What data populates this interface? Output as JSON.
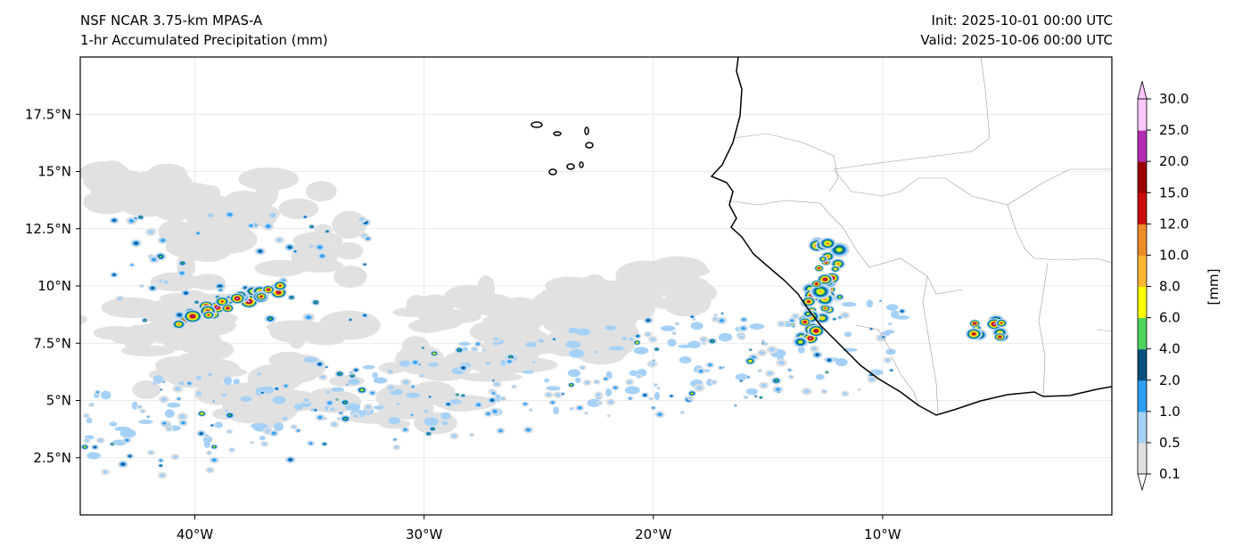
{
  "header": {
    "model": "NSF NCAR 3.75-km MPAS-A",
    "field": "1-hr Accumulated Precipitation (mm)",
    "init": "Init: 2025-10-01 00:00 UTC",
    "valid": "Valid: 2025-10-06 00:00 UTC"
  },
  "map": {
    "lon_range": [
      -45,
      0
    ],
    "lat_range": [
      0,
      20
    ],
    "lon_ticks": [
      {
        "value": -40,
        "label": "40°W"
      },
      {
        "value": -30,
        "label": "30°W"
      },
      {
        "value": -20,
        "label": "20°W"
      },
      {
        "value": -10,
        "label": "10°W"
      }
    ],
    "lat_ticks": [
      {
        "value": 17.5,
        "label": "17.5°N"
      },
      {
        "value": 15,
        "label": "15°N"
      },
      {
        "value": 12.5,
        "label": "12.5°N"
      },
      {
        "value": 10,
        "label": "10°N"
      },
      {
        "value": 7.5,
        "label": "7.5°N"
      },
      {
        "value": 5,
        "label": "5°N"
      },
      {
        "value": 2.5,
        "label": "2.5°N"
      }
    ]
  },
  "colorbar": {
    "label": "[mm]",
    "levels": [
      "0.1",
      "0.5",
      "1.0",
      "2.0",
      "4.0",
      "6.0",
      "8.0",
      "10.0",
      "12.0",
      "15.0",
      "20.0",
      "25.0",
      "30.0"
    ],
    "colors": [
      "#e1e1e1",
      "#a5d1f7",
      "#2e9ef0",
      "#08507f",
      "#4cd45c",
      "#ffff00",
      "#f9b731",
      "#eb8c27",
      "#cc0e0e",
      "#990000",
      "#b32db3",
      "#ffc6ff"
    ],
    "under_color": "#ffffff",
    "over_color": "#ffc6ff"
  }
}
